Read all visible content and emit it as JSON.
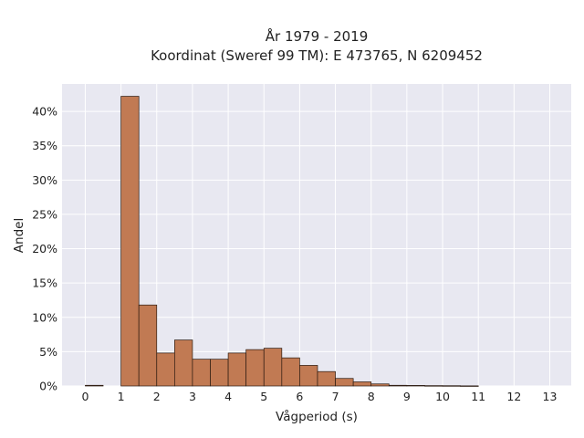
{
  "chart_data": {
    "type": "bar",
    "title_line1": "År 1979 - 2019",
    "title_line2": "Koordinat (Sweref 99 TM): E 473765, N 6209452",
    "xlabel": "Vågperiod (s)",
    "ylabel": "Andel",
    "xlim": [
      -0.65,
      13.6
    ],
    "ylim": [
      0,
      0.44
    ],
    "x_ticks": [
      0,
      1,
      2,
      3,
      4,
      5,
      6,
      7,
      8,
      9,
      10,
      11,
      12,
      13
    ],
    "x_tick_labels": [
      "0",
      "1",
      "2",
      "3",
      "4",
      "5",
      "6",
      "7",
      "8",
      "9",
      "10",
      "11",
      "12",
      "13"
    ],
    "y_ticks": [
      0,
      0.05,
      0.1,
      0.15,
      0.2,
      0.25,
      0.3,
      0.35,
      0.4
    ],
    "y_tick_labels": [
      "0%",
      "5%",
      "10%",
      "15%",
      "20%",
      "25%",
      "30%",
      "35%",
      "40%"
    ],
    "bin_width": 0.5,
    "bins": [
      {
        "x0": 0.0,
        "value": 0.001
      },
      {
        "x0": 1.0,
        "value": 0.422
      },
      {
        "x0": 1.5,
        "value": 0.118
      },
      {
        "x0": 2.0,
        "value": 0.048
      },
      {
        "x0": 2.5,
        "value": 0.067
      },
      {
        "x0": 3.0,
        "value": 0.039
      },
      {
        "x0": 3.5,
        "value": 0.039
      },
      {
        "x0": 4.0,
        "value": 0.048
      },
      {
        "x0": 4.5,
        "value": 0.053
      },
      {
        "x0": 5.0,
        "value": 0.055
      },
      {
        "x0": 5.5,
        "value": 0.041
      },
      {
        "x0": 6.0,
        "value": 0.03
      },
      {
        "x0": 6.5,
        "value": 0.021
      },
      {
        "x0": 7.0,
        "value": 0.011
      },
      {
        "x0": 7.5,
        "value": 0.006
      },
      {
        "x0": 8.0,
        "value": 0.003
      },
      {
        "x0": 8.5,
        "value": 0.001
      },
      {
        "x0": 9.0,
        "value": 0.0008
      },
      {
        "x0": 9.5,
        "value": 0.0005
      },
      {
        "x0": 10.0,
        "value": 0.0004
      },
      {
        "x0": 10.5,
        "value": 0.0002
      }
    ],
    "grid": true,
    "bar_color": "#c17a53",
    "edge_color": "#2a1a10",
    "plot_background": "#e8e8f1"
  }
}
